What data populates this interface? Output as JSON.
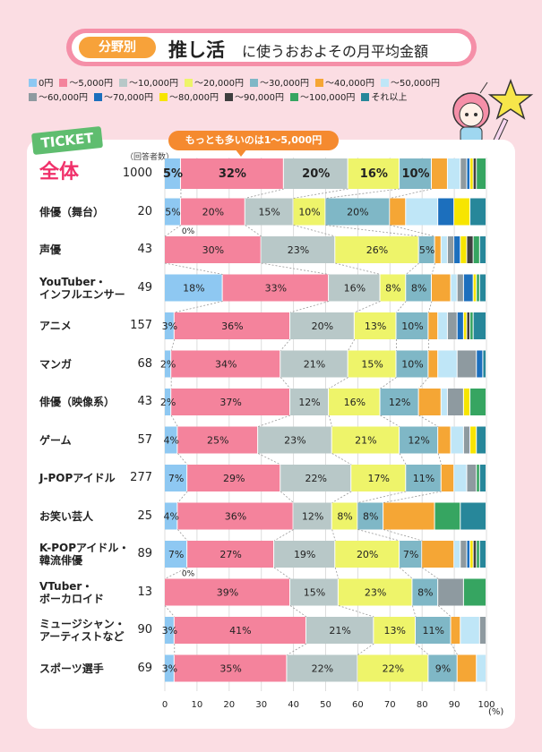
{
  "title": {
    "badge": "分野別",
    "main": "推し活",
    "rest": "に使うおおよその月平均金額"
  },
  "callout": "もっとも多いのは1～5,000円",
  "ticket": "TICKET",
  "respondents_header": "（回答者数）",
  "axis_unit": "(%)",
  "legend": [
    {
      "label": "0円",
      "color": "#8ec8f2"
    },
    {
      "label": "～5,000円",
      "color": "#f4839c"
    },
    {
      "label": "～10,000円",
      "color": "#b8c8c8"
    },
    {
      "label": "～20,000円",
      "color": "#eef46a"
    },
    {
      "label": "～30,000円",
      "color": "#7fb7c6"
    },
    {
      "label": "～40,000円",
      "color": "#f5a635"
    },
    {
      "label": "～50,000円",
      "color": "#bfe6f7"
    },
    {
      "label": "～60,000円",
      "color": "#8e9aa0"
    },
    {
      "label": "～70,000円",
      "color": "#1c6fbd"
    },
    {
      "label": "～80,000円",
      "color": "#f7e500"
    },
    {
      "label": "～90,000円",
      "color": "#3f3f3f"
    },
    {
      "label": "～100,000円",
      "color": "#36a561"
    },
    {
      "label": "それ以上",
      "color": "#27879a"
    }
  ],
  "chart_data": {
    "type": "bar",
    "orientation": "horizontal-stacked-100",
    "xlim": [
      0,
      100
    ],
    "xticks": [
      0,
      10,
      20,
      30,
      40,
      50,
      60,
      70,
      80,
      90,
      100
    ],
    "categories": [
      {
        "label": "全体",
        "count": "1000",
        "values": [
          5,
          32,
          20,
          16,
          10,
          5,
          4,
          2,
          1,
          1,
          1,
          3,
          0
        ]
      },
      {
        "label": "俳優（舞台）",
        "count": "20",
        "values": [
          5,
          20,
          15,
          10,
          20,
          5,
          10,
          0,
          5,
          5,
          0,
          0,
          5
        ]
      },
      {
        "label": "声優",
        "count": "43",
        "values": [
          0,
          30,
          23,
          26,
          5,
          2,
          2,
          2,
          2,
          2,
          2,
          2,
          2
        ]
      },
      {
        "label": "YouTuber・\nインフルエンサー",
        "count": "49",
        "values": [
          18,
          33,
          16,
          8,
          8,
          6,
          2,
          2,
          3,
          1,
          0,
          1,
          2
        ]
      },
      {
        "label": "アニメ",
        "count": "157",
        "values": [
          3,
          36,
          20,
          13,
          10,
          3,
          3,
          3,
          2,
          1,
          1,
          1,
          4
        ]
      },
      {
        "label": "マンガ",
        "count": "68",
        "values": [
          2,
          34,
          21,
          15,
          10,
          3,
          6,
          6,
          2,
          0,
          0,
          0,
          1
        ]
      },
      {
        "label": "俳優（映像系）",
        "count": "43",
        "values": [
          2,
          37,
          12,
          16,
          12,
          7,
          2,
          5,
          0,
          2,
          0,
          5,
          0
        ]
      },
      {
        "label": "ゲーム",
        "count": "57",
        "values": [
          4,
          25,
          23,
          21,
          12,
          4,
          4,
          2,
          0,
          2,
          0,
          0,
          3
        ]
      },
      {
        "label": "J-POPアイドル",
        "count": "277",
        "values": [
          7,
          29,
          22,
          17,
          11,
          4,
          4,
          3,
          0,
          0,
          0,
          1,
          2
        ]
      },
      {
        "label": "お笑い芸人",
        "count": "25",
        "values": [
          4,
          36,
          12,
          8,
          8,
          16,
          0,
          0,
          0,
          0,
          0,
          8,
          8
        ]
      },
      {
        "label": "K-POPアイドル・\n韓流俳優",
        "count": "89",
        "values": [
          7,
          27,
          19,
          20,
          7,
          10,
          2,
          2,
          1,
          1,
          1,
          1,
          2
        ]
      },
      {
        "label": "VTuber・\nボーカロイド",
        "count": "13",
        "values": [
          0,
          39,
          15,
          23,
          8,
          0,
          0,
          8,
          0,
          0,
          0,
          7,
          0
        ]
      },
      {
        "label": "ミュージシャン・\nアーティストなど",
        "count": "90",
        "values": [
          3,
          41,
          21,
          13,
          11,
          3,
          6,
          2,
          0,
          0,
          0,
          0,
          0
        ]
      },
      {
        "label": "スポーツ選手",
        "count": "69",
        "values": [
          3,
          35,
          22,
          22,
          9,
          6,
          3,
          0,
          0,
          0,
          0,
          0,
          0
        ]
      }
    ],
    "data_labels": [
      [
        5,
        32,
        20,
        16,
        10
      ],
      [
        5,
        20,
        15,
        10,
        20
      ],
      [
        0,
        30,
        23,
        26,
        5
      ],
      [
        18,
        33,
        16,
        8,
        8
      ],
      [
        3,
        36,
        20,
        13,
        10
      ],
      [
        2,
        34,
        21,
        15,
        10
      ],
      [
        2,
        37,
        12,
        16,
        12
      ],
      [
        4,
        25,
        23,
        21,
        12
      ],
      [
        7,
        29,
        22,
        17,
        11
      ],
      [
        4,
        36,
        12,
        8,
        8
      ],
      [
        7,
        27,
        19,
        20,
        7
      ],
      [
        0,
        39,
        15,
        23,
        8
      ],
      [
        3,
        41,
        21,
        13,
        11
      ],
      [
        3,
        35,
        22,
        22,
        9
      ]
    ]
  }
}
